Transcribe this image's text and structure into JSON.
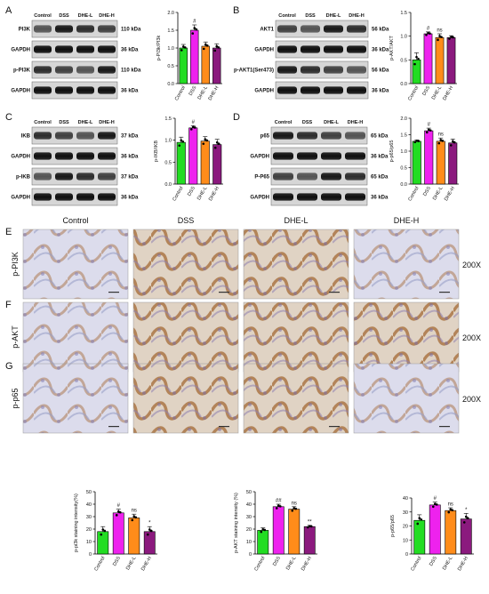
{
  "figure": {
    "blots": [
      {
        "panel_letter": "A",
        "lane_headers": [
          "Control",
          "DSS",
          "DHE-L",
          "DHE-H"
        ],
        "rows": [
          {
            "label": "PI3K",
            "kda": "110 kDa"
          },
          {
            "label": "GAPDH",
            "kda": "36 kDa"
          },
          {
            "label": "p-PI3K",
            "kda": "110 kDa"
          },
          {
            "label": "GAPDH",
            "kda": "36 kDa"
          }
        ]
      },
      {
        "panel_letter": "B",
        "lane_headers": [
          "Control",
          "DSS",
          "DHE-L",
          "DHE-H"
        ],
        "rows": [
          {
            "label": "AKT1",
            "kda": "56 kDa"
          },
          {
            "label": "GAPDH",
            "kda": "36 kDa"
          },
          {
            "label": "p-AKT1(Ser473)",
            "kda": "56 kDa"
          },
          {
            "label": "GAPDH",
            "kda": "36 kDa"
          }
        ]
      },
      {
        "panel_letter": "C",
        "lane_headers": [
          "Control",
          "DSS",
          "DHE-L",
          "DHE-H"
        ],
        "rows": [
          {
            "label": "IKB",
            "kda": "37 kDa"
          },
          {
            "label": "GAPDH",
            "kda": "36 kDa"
          },
          {
            "label": "p-IKB",
            "kda": "37 kDa"
          },
          {
            "label": "GAPDH",
            "kda": "36 kDa"
          }
        ]
      },
      {
        "panel_letter": "D",
        "lane_headers": [
          "Control",
          "DSS",
          "DHE-L",
          "DHE-H"
        ],
        "rows": [
          {
            "label": "p65",
            "kda": "65 kDa"
          },
          {
            "label": "GAPDH",
            "kda": "36 kDa"
          },
          {
            "label": "P-P65",
            "kda": "65 kDa"
          },
          {
            "label": "GAPDH",
            "kda": "36 kDa"
          }
        ]
      }
    ],
    "ihc": {
      "column_headers": [
        "Control",
        "DSS",
        "DHE-L",
        "DHE-H"
      ],
      "rows": [
        {
          "panel_letter": "E",
          "label": "p-PI3K",
          "magnification": "200X"
        },
        {
          "panel_letter": "F",
          "label": "p-AKT",
          "magnification": "200X"
        },
        {
          "panel_letter": "G",
          "label": "p-p65",
          "magnification": "200X"
        }
      ]
    }
  },
  "colors": {
    "Control": "#22dd22",
    "DSS": "#ee22ee",
    "DHE-L": "#ff8c1a",
    "DHE-H": "#8b1a7e"
  },
  "chart_data": [
    {
      "type": "bar",
      "categories": [
        "Control",
        "DSS",
        "DHE-L",
        "DHE-H"
      ],
      "values": [
        1.0,
        1.5,
        1.05,
        1.0
      ],
      "errors": [
        0.1,
        0.15,
        0.12,
        0.12
      ],
      "ylabel": "p-PI3k/PI3k",
      "ylim": [
        0,
        2.0
      ],
      "yticks": [
        0.0,
        0.5,
        1.0,
        1.5,
        2.0
      ],
      "annotations": [
        "",
        "#",
        "",
        ""
      ]
    },
    {
      "type": "bar",
      "categories": [
        "Control",
        "DSS",
        "DHE-L",
        "DHE-H"
      ],
      "values": [
        0.5,
        1.05,
        0.97,
        0.97
      ],
      "errors": [
        0.15,
        0.04,
        0.08,
        0.04
      ],
      "ylabel": "p-AKT/AKT",
      "ylim": [
        0,
        1.5
      ],
      "yticks": [
        0.0,
        0.5,
        1.0,
        1.5
      ],
      "annotations": [
        "",
        "#",
        "ns",
        ""
      ]
    },
    {
      "type": "bar",
      "categories": [
        "Control",
        "DSS",
        "DHE-L",
        "DHE-H"
      ],
      "values": [
        0.95,
        1.28,
        0.98,
        0.9
      ],
      "errors": [
        0.12,
        0.05,
        0.1,
        0.12
      ],
      "ylabel": "p-IKB/IKB",
      "ylim": [
        0,
        1.5
      ],
      "yticks": [
        0.0,
        0.5,
        1.0,
        1.5
      ],
      "annotations": [
        "",
        "#",
        "",
        ""
      ]
    },
    {
      "type": "bar",
      "categories": [
        "Control",
        "DSS",
        "DHE-L",
        "DHE-H"
      ],
      "values": [
        1.3,
        1.62,
        1.3,
        1.25
      ],
      "errors": [
        0.04,
        0.08,
        0.1,
        0.12
      ],
      "ylabel": "p-p65/p65",
      "ylim": [
        0,
        2.0
      ],
      "yticks": [
        0.0,
        0.5,
        1.0,
        1.5,
        2.0
      ],
      "annotations": [
        "",
        "#",
        "ns",
        ""
      ]
    },
    {
      "type": "bar",
      "categories": [
        "Control",
        "DSS",
        "DHE-L",
        "DHE-H"
      ],
      "values": [
        18,
        33,
        29,
        18
      ],
      "errors": [
        4,
        3,
        3,
        4
      ],
      "ylabel": "p-pi3k staining intensity(%)",
      "ylim": [
        0,
        50
      ],
      "yticks": [
        0,
        10,
        20,
        30,
        40,
        50
      ],
      "annotations": [
        "",
        "#",
        "ns",
        "*"
      ]
    },
    {
      "type": "bar",
      "categories": [
        "Control",
        "DSS",
        "DHE-L",
        "DHE-H"
      ],
      "values": [
        19,
        38,
        36,
        22
      ],
      "errors": [
        2,
        2,
        2,
        1
      ],
      "ylabel": "p-AKT staining intensity (%)",
      "ylim": [
        0,
        50
      ],
      "yticks": [
        0,
        10,
        20,
        30,
        40,
        50
      ],
      "annotations": [
        "",
        "##",
        "ns",
        "**"
      ]
    },
    {
      "type": "bar",
      "categories": [
        "Control",
        "DSS",
        "DHE-L",
        "DHE-H"
      ],
      "values": [
        24,
        35,
        31,
        25
      ],
      "errors": [
        4,
        2,
        2,
        4
      ],
      "ylabel": "p-p65/p65",
      "ylim": [
        0,
        40
      ],
      "yticks": [
        0,
        10,
        20,
        30,
        40
      ],
      "annotations": [
        "",
        "#",
        "ns",
        "*"
      ]
    }
  ]
}
